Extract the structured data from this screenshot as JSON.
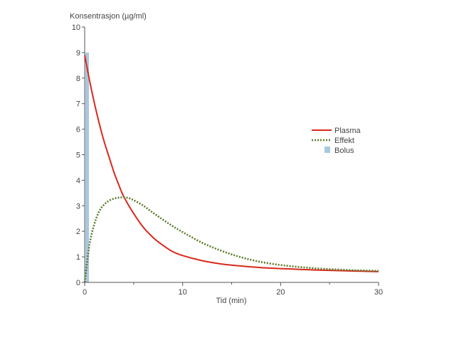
{
  "chart_data": {
    "type": "line",
    "title": "",
    "ylabel": "Konsentrasjon (µg/ml)",
    "xlabel": "Tid (min)",
    "xlim": [
      0,
      30
    ],
    "ylim": [
      0,
      10
    ],
    "xticks_labeled": [
      0,
      10,
      20,
      30
    ],
    "xticks_minor": [
      5,
      15,
      25
    ],
    "yticks": [
      0,
      1,
      2,
      3,
      4,
      5,
      6,
      7,
      8,
      9,
      10
    ],
    "grid": false,
    "legend_position": "right",
    "series": [
      {
        "name": "Plasma",
        "style": "solid",
        "color": "#d9281c",
        "x": [
          0,
          0.5,
          1,
          1.5,
          2,
          2.5,
          3,
          3.5,
          4,
          5,
          6,
          7,
          8,
          9,
          10,
          12,
          14,
          16,
          18,
          20,
          22,
          24,
          26,
          28,
          30
        ],
        "y": [
          8.9,
          7.9,
          7.0,
          6.2,
          5.5,
          4.9,
          4.3,
          3.8,
          3.35,
          2.7,
          2.15,
          1.75,
          1.45,
          1.2,
          1.05,
          0.85,
          0.72,
          0.64,
          0.58,
          0.54,
          0.51,
          0.48,
          0.46,
          0.44,
          0.42
        ]
      },
      {
        "name": "Effekt",
        "style": "dotted",
        "color": "#5a7a2a",
        "x": [
          0,
          0.5,
          1,
          1.5,
          2,
          2.5,
          3,
          3.5,
          4,
          4.5,
          5,
          6,
          7,
          8,
          9,
          10,
          12,
          14,
          16,
          18,
          20,
          22,
          24,
          26,
          28,
          30
        ],
        "y": [
          0,
          1.5,
          2.3,
          2.8,
          3.05,
          3.2,
          3.28,
          3.32,
          3.33,
          3.3,
          3.22,
          3.0,
          2.72,
          2.45,
          2.2,
          1.97,
          1.55,
          1.23,
          0.98,
          0.8,
          0.68,
          0.6,
          0.54,
          0.5,
          0.47,
          0.45
        ]
      }
    ],
    "bolus": {
      "name": "Bolus",
      "color": "#a8c8e0",
      "x": 0,
      "value": 9.0
    }
  }
}
